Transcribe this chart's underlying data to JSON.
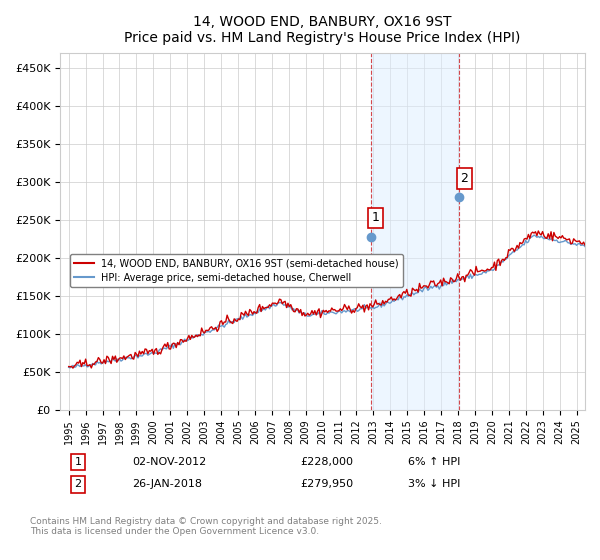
{
  "title": "14, WOOD END, BANBURY, OX16 9ST",
  "subtitle": "Price paid vs. HM Land Registry's House Price Index (HPI)",
  "ylabel_ticks": [
    "£0",
    "£50K",
    "£100K",
    "£150K",
    "£200K",
    "£250K",
    "£300K",
    "£350K",
    "£400K",
    "£450K"
  ],
  "ytick_vals": [
    0,
    50000,
    100000,
    150000,
    200000,
    250000,
    300000,
    350000,
    400000,
    450000
  ],
  "ylim": [
    0,
    470000
  ],
  "xlim_start": 1995.0,
  "xlim_end": 2025.5,
  "hpi_color": "#6699cc",
  "price_color": "#cc0000",
  "sale1_date": 2012.84,
  "sale1_price": 228000,
  "sale2_date": 2018.07,
  "sale2_price": 279950,
  "sale1_label": "1",
  "sale2_label": "2",
  "legend_line1": "14, WOOD END, BANBURY, OX16 9ST (semi-detached house)",
  "legend_line2": "HPI: Average price, semi-detached house, Cherwell",
  "annotation1": "1    02-NOV-2012    £228,000    6% ↑ HPI",
  "annotation2": "2    26-JAN-2018    £279,950    3% ↓ HPI",
  "footnote": "Contains HM Land Registry data © Crown copyright and database right 2025.\nThis data is licensed under the Open Government Licence v3.0.",
  "background_color": "#ffffff",
  "grid_color": "#cccccc",
  "shaded_region_color": "#ddeeff",
  "shaded_alpha": 0.5
}
